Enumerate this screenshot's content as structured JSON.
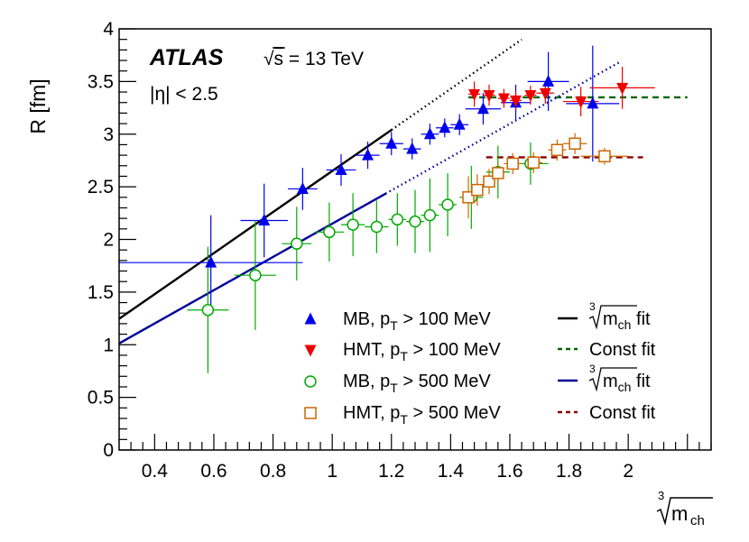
{
  "chart_data": {
    "type": "scatter",
    "experiment": "ATLAS",
    "energy_label": "√s = 13 TeV",
    "energy_prefix": "√",
    "energy_s": "s",
    "energy_rest": " = 13 TeV",
    "eta_cut": "|η| < 2.5",
    "ylabel": "R [fm]",
    "xlabel": "∛m_ch",
    "xlabel_root": "3",
    "xlabel_m": "m",
    "xlabel_sub": "ch",
    "xlim": [
      0.28,
      2.28
    ],
    "ylim": [
      0,
      4
    ],
    "xticks": [
      0.4,
      0.6,
      0.8,
      1.0,
      1.2,
      1.4,
      1.6,
      1.8,
      2.0
    ],
    "xtick_labels": [
      "0.4",
      "0.6",
      "0.8",
      "1",
      "1.2",
      "1.4",
      "1.6",
      "1.8",
      "2"
    ],
    "yticks": [
      0,
      0.5,
      1,
      1.5,
      2,
      2.5,
      3,
      3.5,
      4
    ],
    "ytick_labels": [
      "0",
      "0.5",
      "1",
      "1.5",
      "2",
      "2.5",
      "3",
      "3.5",
      "4"
    ],
    "series": [
      {
        "name": "MB, pT > 100 MeV",
        "label_main": "MB, p",
        "label_sub": "T",
        "label_rest": " > 100 MeV",
        "marker": "triangle-up",
        "color": "#0000ee",
        "points": [
          {
            "x": 0.59,
            "y": 1.78,
            "xerr": 0.31,
            "yerr": 0.45
          },
          {
            "x": 0.77,
            "y": 2.18,
            "xerr": 0.08,
            "yerr": 0.35
          },
          {
            "x": 0.9,
            "y": 2.48,
            "xerr": 0.05,
            "yerr": 0.2
          },
          {
            "x": 1.03,
            "y": 2.66,
            "xerr": 0.05,
            "yerr": 0.15
          },
          {
            "x": 1.12,
            "y": 2.8,
            "xerr": 0.04,
            "yerr": 0.13
          },
          {
            "x": 1.2,
            "y": 2.91,
            "xerr": 0.04,
            "yerr": 0.11
          },
          {
            "x": 1.27,
            "y": 2.86,
            "xerr": 0.03,
            "yerr": 0.1
          },
          {
            "x": 1.33,
            "y": 3.0,
            "xerr": 0.03,
            "yerr": 0.1
          },
          {
            "x": 1.38,
            "y": 3.06,
            "xerr": 0.03,
            "yerr": 0.09
          },
          {
            "x": 1.43,
            "y": 3.09,
            "xerr": 0.03,
            "yerr": 0.1
          },
          {
            "x": 1.51,
            "y": 3.24,
            "xerr": 0.06,
            "yerr": 0.15
          },
          {
            "x": 1.62,
            "y": 3.3,
            "xerr": 0.05,
            "yerr": 0.17
          },
          {
            "x": 1.73,
            "y": 3.5,
            "xerr": 0.07,
            "yerr": 0.28
          },
          {
            "x": 1.88,
            "y": 3.29,
            "xerr": 0.09,
            "yerr": 0.55
          }
        ]
      },
      {
        "name": "HMT, pT > 100 MeV",
        "label_main": "HMT, p",
        "label_sub": "T",
        "label_rest": " > 100 MeV",
        "marker": "triangle-down",
        "color": "#ee0000",
        "points": [
          {
            "x": 1.48,
            "y": 3.38,
            "xerr": 0.02,
            "yerr": 0.12
          },
          {
            "x": 1.53,
            "y": 3.37,
            "xerr": 0.02,
            "yerr": 0.1
          },
          {
            "x": 1.58,
            "y": 3.34,
            "xerr": 0.02,
            "yerr": 0.09
          },
          {
            "x": 1.62,
            "y": 3.32,
            "xerr": 0.02,
            "yerr": 0.09
          },
          {
            "x": 1.67,
            "y": 3.37,
            "xerr": 0.02,
            "yerr": 0.09
          },
          {
            "x": 1.72,
            "y": 3.39,
            "xerr": 0.03,
            "yerr": 0.1
          },
          {
            "x": 1.84,
            "y": 3.31,
            "xerr": 0.06,
            "yerr": 0.14
          },
          {
            "x": 1.98,
            "y": 3.44,
            "xerr": 0.11,
            "yerr": 0.2
          }
        ]
      },
      {
        "name": "MB, pT > 500 MeV",
        "label_main": "MB, p",
        "label_sub": "T",
        "label_rest": " > 500 MeV",
        "marker": "circle-open",
        "color": "#00aa00",
        "points": [
          {
            "x": 0.58,
            "y": 1.33,
            "xerr": 0.07,
            "yerr": 0.6
          },
          {
            "x": 0.74,
            "y": 1.66,
            "xerr": 0.07,
            "yerr": 0.52
          },
          {
            "x": 0.88,
            "y": 1.96,
            "xerr": 0.05,
            "yerr": 0.35
          },
          {
            "x": 0.99,
            "y": 2.07,
            "xerr": 0.05,
            "yerr": 0.28
          },
          {
            "x": 1.07,
            "y": 2.14,
            "xerr": 0.04,
            "yerr": 0.3
          },
          {
            "x": 1.15,
            "y": 2.12,
            "xerr": 0.04,
            "yerr": 0.25
          },
          {
            "x": 1.22,
            "y": 2.19,
            "xerr": 0.03,
            "yerr": 0.25
          },
          {
            "x": 1.28,
            "y": 2.17,
            "xerr": 0.03,
            "yerr": 0.3
          },
          {
            "x": 1.33,
            "y": 2.23,
            "xerr": 0.03,
            "yerr": 0.35
          },
          {
            "x": 1.39,
            "y": 2.33,
            "xerr": 0.03,
            "yerr": 0.3
          },
          {
            "x": 1.47,
            "y": 2.4,
            "xerr": 0.04,
            "yerr": 0.3
          },
          {
            "x": 1.56,
            "y": 2.64,
            "xerr": 0.04,
            "yerr": 0.25
          },
          {
            "x": 1.67,
            "y": 2.72,
            "xerr": 0.06,
            "yerr": 0.2
          }
        ]
      },
      {
        "name": "HMT, pT > 500 MeV",
        "label_main": "HMT, p",
        "label_sub": "T",
        "label_rest": " > 500 MeV",
        "marker": "square-open",
        "color": "#cc6600",
        "points": [
          {
            "x": 1.46,
            "y": 2.4,
            "xerr": 0.02,
            "yerr": 0.2
          },
          {
            "x": 1.49,
            "y": 2.47,
            "xerr": 0.02,
            "yerr": 0.15
          },
          {
            "x": 1.53,
            "y": 2.55,
            "xerr": 0.02,
            "yerr": 0.12
          },
          {
            "x": 1.56,
            "y": 2.63,
            "xerr": 0.02,
            "yerr": 0.1
          },
          {
            "x": 1.61,
            "y": 2.72,
            "xerr": 0.03,
            "yerr": 0.1
          },
          {
            "x": 1.68,
            "y": 2.73,
            "xerr": 0.03,
            "yerr": 0.1
          },
          {
            "x": 1.76,
            "y": 2.85,
            "xerr": 0.03,
            "yerr": 0.1
          },
          {
            "x": 1.82,
            "y": 2.91,
            "xerr": 0.04,
            "yerr": 0.1
          },
          {
            "x": 1.92,
            "y": 2.79,
            "xerr": 0.08,
            "yerr": 0.08
          }
        ]
      }
    ],
    "fits": [
      {
        "name": "∛m_ch fit (pT > 100 MeV)",
        "label_text": "fit",
        "label_kind": "cbrt",
        "color": "#000000",
        "dash": "solid",
        "kind": "linear",
        "slope": 1.95,
        "intercept": 0.7,
        "x_start": 0.28,
        "x_solid_end": 1.2,
        "x_dotted_end": 1.64
      },
      {
        "name": "Const fit (HMT, pT > 100 MeV)",
        "label_text": "Const fit",
        "label_kind": "text",
        "color": "#006600",
        "dash": "dashed",
        "kind": "const",
        "value": 3.35,
        "x_start": 1.46,
        "x_end": 2.2
      },
      {
        "name": "∛m_ch fit (pT > 500 MeV)",
        "label_text": "fit",
        "label_kind": "cbrt",
        "color": "#000099",
        "dash": "solid",
        "kind": "linear",
        "slope": 1.58,
        "intercept": 0.57,
        "x_start": 0.28,
        "x_solid_end": 1.18,
        "x_dotted_end": 1.97
      },
      {
        "name": "Const fit (HMT, pT > 500 MeV)",
        "label_text": "Const fit",
        "label_kind": "text",
        "color": "#880000",
        "dash": "dashed",
        "kind": "const",
        "value": 2.78,
        "x_start": 1.52,
        "x_end": 2.05
      }
    ],
    "legend_position": "bottom-right"
  }
}
